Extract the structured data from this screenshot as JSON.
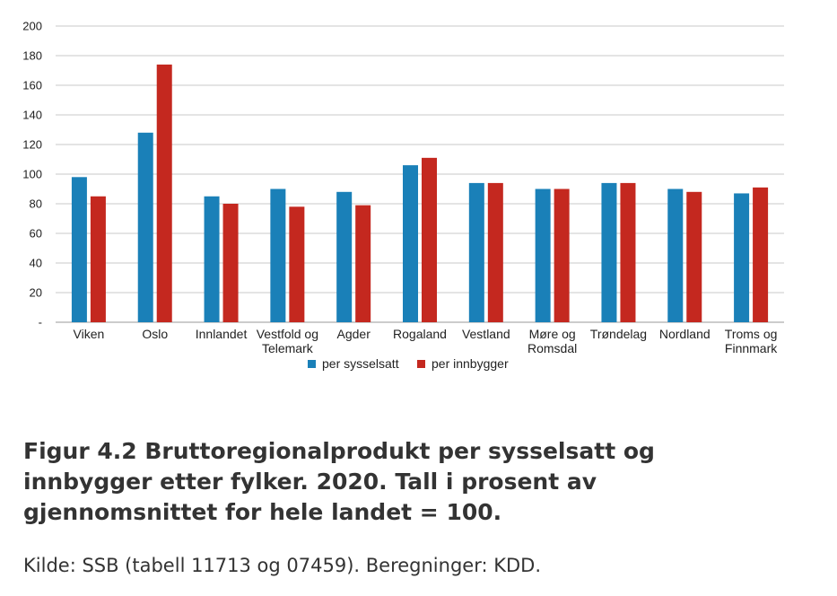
{
  "chart_data": {
    "type": "bar",
    "categories": [
      "Viken",
      "Oslo",
      "Innlandet",
      "Vestfold og\nTelemark",
      "Agder",
      "Rogaland",
      "Vestland",
      "Møre og\nRomsdal",
      "Trøndelag",
      "Nordland",
      "Troms og\nFinnmark"
    ],
    "series": [
      {
        "name": "per sysselsatt",
        "color": "#1a80b8",
        "values": [
          98,
          128,
          85,
          90,
          88,
          106,
          94,
          90,
          94,
          90,
          87
        ]
      },
      {
        "name": "per innbygger",
        "color": "#c4281f",
        "values": [
          85,
          174,
          80,
          78,
          79,
          111,
          94,
          90,
          94,
          88,
          91
        ]
      }
    ],
    "y_ticks": [
      "-",
      "20",
      "40",
      "60",
      "80",
      "100",
      "120",
      "140",
      "160",
      "180",
      "200"
    ],
    "ylim": [
      0,
      200
    ],
    "grid": true,
    "legend_position": "bottom"
  },
  "caption": "Figur 4.2 Bruttoregionalprodukt per sysselsatt og innbygger etter fylker. 2020. Tall i prosent av gjennomsnittet for hele landet = 100.",
  "source": "Kilde: SSB (tabell 11713 og 07459). Beregninger: KDD."
}
